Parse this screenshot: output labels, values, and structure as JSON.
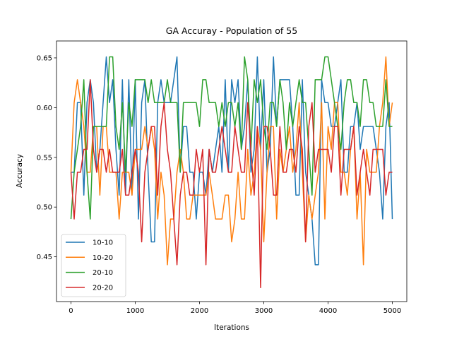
{
  "chart_data": {
    "type": "line",
    "title": "GA Accuray - Population of 55",
    "xlabel": "Iterations",
    "ylabel": "Accuracy",
    "xlim": [
      -225,
      5225
    ],
    "ylim": [
      0.405,
      0.667
    ],
    "xticks": [
      0,
      1000,
      2000,
      3000,
      4000,
      5000
    ],
    "xtick_labels": [
      "0",
      "1000",
      "2000",
      "3000",
      "4000",
      "5000"
    ],
    "yticks": [
      0.45,
      0.5,
      0.55,
      0.6,
      0.65
    ],
    "ytick_labels": [
      "0.45",
      "0.50",
      "0.55",
      "0.60",
      "0.65"
    ],
    "legend_position": "lower-left",
    "grid": false,
    "x": [
      0,
      50,
      100,
      150,
      200,
      250,
      300,
      350,
      400,
      450,
      500,
      550,
      600,
      650,
      700,
      750,
      800,
      850,
      900,
      950,
      1000,
      1050,
      1100,
      1150,
      1200,
      1250,
      1300,
      1350,
      1400,
      1450,
      1500,
      1550,
      1600,
      1650,
      1700,
      1750,
      1800,
      1850,
      1900,
      1950,
      2000,
      2050,
      2100,
      2150,
      2200,
      2250,
      2300,
      2350,
      2400,
      2450,
      2500,
      2550,
      2600,
      2650,
      2700,
      2750,
      2800,
      2850,
      2900,
      2950,
      3000,
      3050,
      3100,
      3150,
      3200,
      3250,
      3300,
      3350,
      3400,
      3450,
      3500,
      3550,
      3600,
      3650,
      3700,
      3750,
      3800,
      3850,
      3900,
      3950,
      4000,
      4050,
      4100,
      4150,
      4200,
      4250,
      4300,
      4350,
      4400,
      4450,
      4500,
      4550,
      4600,
      4650,
      4700,
      4750,
      4800,
      4850,
      4900,
      4950,
      5000
    ],
    "series": [
      {
        "name": "10-10",
        "color": "#1f77b4",
        "values": [
          0.535,
          0.535,
          0.605,
          0.605,
          0.512,
          0.605,
          0.628,
          0.605,
          0.535,
          0.558,
          0.605,
          0.651,
          0.605,
          0.628,
          0.558,
          0.512,
          0.628,
          0.512,
          0.628,
          0.512,
          0.628,
          0.488,
          0.605,
          0.628,
          0.535,
          0.465,
          0.465,
          0.605,
          0.628,
          0.605,
          0.605,
          0.605,
          0.628,
          0.651,
          0.535,
          0.581,
          0.581,
          0.535,
          0.535,
          0.488,
          0.535,
          0.535,
          0.512,
          0.558,
          0.535,
          0.558,
          0.581,
          0.535,
          0.628,
          0.535,
          0.628,
          0.605,
          0.628,
          0.558,
          0.581,
          0.628,
          0.535,
          0.558,
          0.651,
          0.558,
          0.628,
          0.535,
          0.558,
          0.651,
          0.581,
          0.628,
          0.628,
          0.628,
          0.628,
          0.581,
          0.512,
          0.512,
          0.628,
          0.535,
          0.512,
          0.488,
          0.442,
          0.442,
          0.628,
          0.605,
          0.605,
          0.581,
          0.581,
          0.605,
          0.628,
          0.535,
          0.535,
          0.581,
          0.581,
          0.605,
          0.558,
          0.581,
          0.581,
          0.581,
          0.581,
          0.558,
          0.535,
          0.488,
          0.581,
          0.605,
          0.488
        ]
      },
      {
        "name": "10-20",
        "color": "#ff7f0e",
        "values": [
          0.535,
          0.605,
          0.628,
          0.605,
          0.581,
          0.535,
          0.535,
          0.581,
          0.581,
          0.512,
          0.581,
          0.581,
          0.535,
          0.535,
          0.535,
          0.488,
          0.535,
          0.535,
          0.535,
          0.512,
          0.558,
          0.558,
          0.558,
          0.581,
          0.558,
          0.581,
          0.558,
          0.488,
          0.535,
          0.512,
          0.442,
          0.488,
          0.488,
          0.535,
          0.558,
          0.535,
          0.488,
          0.488,
          0.512,
          0.512,
          0.512,
          0.512,
          0.512,
          0.535,
          0.512,
          0.488,
          0.488,
          0.488,
          0.512,
          0.512,
          0.465,
          0.488,
          0.535,
          0.488,
          0.488,
          0.558,
          0.512,
          0.535,
          0.581,
          0.558,
          0.465,
          0.535,
          0.581,
          0.581,
          0.488,
          0.558,
          0.535,
          0.558,
          0.581,
          0.535,
          0.558,
          0.605,
          0.535,
          0.465,
          0.512,
          0.488,
          0.512,
          0.535,
          0.605,
          0.488,
          0.581,
          0.558,
          0.605,
          0.605,
          0.535,
          0.535,
          0.512,
          0.558,
          0.581,
          0.488,
          0.535,
          0.442,
          0.558,
          0.535,
          0.535,
          0.535,
          0.581,
          0.605,
          0.651,
          0.581,
          0.605
        ]
      },
      {
        "name": "20-10",
        "color": "#2ca02c",
        "values": [
          0.488,
          0.535,
          0.558,
          0.581,
          0.628,
          0.535,
          0.488,
          0.581,
          0.581,
          0.581,
          0.581,
          0.581,
          0.651,
          0.651,
          0.581,
          0.558,
          0.605,
          0.535,
          0.605,
          0.581,
          0.628,
          0.628,
          0.628,
          0.628,
          0.605,
          0.628,
          0.605,
          0.605,
          0.605,
          0.605,
          0.628,
          0.605,
          0.605,
          0.605,
          0.535,
          0.605,
          0.605,
          0.605,
          0.605,
          0.605,
          0.581,
          0.628,
          0.628,
          0.605,
          0.605,
          0.605,
          0.581,
          0.605,
          0.581,
          0.605,
          0.605,
          0.581,
          0.605,
          0.558,
          0.651,
          0.628,
          0.558,
          0.628,
          0.605,
          0.628,
          0.581,
          0.558,
          0.605,
          0.605,
          0.581,
          0.628,
          0.605,
          0.558,
          0.605,
          0.581,
          0.605,
          0.628,
          0.605,
          0.605,
          0.558,
          0.512,
          0.628,
          0.628,
          0.628,
          0.651,
          0.651,
          0.628,
          0.605,
          0.581,
          0.558,
          0.605,
          0.628,
          0.628,
          0.605,
          0.605,
          0.581,
          0.628,
          0.628,
          0.605,
          0.605,
          0.581,
          0.581,
          0.581,
          0.628,
          0.581,
          0.581
        ]
      },
      {
        "name": "20-20",
        "color": "#d62728",
        "values": [
          0.535,
          0.488,
          0.535,
          0.535,
          0.558,
          0.558,
          0.628,
          0.558,
          0.535,
          0.558,
          0.558,
          0.535,
          0.558,
          0.535,
          0.535,
          0.535,
          0.558,
          0.512,
          0.512,
          0.535,
          0.558,
          0.535,
          0.465,
          0.535,
          0.558,
          0.581,
          0.581,
          0.512,
          0.581,
          0.605,
          0.558,
          0.535,
          0.488,
          0.442,
          0.512,
          0.535,
          0.535,
          0.512,
          0.512,
          0.558,
          0.535,
          0.558,
          0.442,
          0.558,
          0.535,
          0.535,
          0.558,
          0.581,
          0.558,
          0.535,
          0.535,
          0.581,
          0.558,
          0.535,
          0.535,
          0.605,
          0.558,
          0.512,
          0.581,
          0.419,
          0.581,
          0.581,
          0.558,
          0.512,
          0.512,
          0.581,
          0.535,
          0.535,
          0.558,
          0.558,
          0.535,
          0.581,
          0.558,
          0.465,
          0.581,
          0.605,
          0.535,
          0.558,
          0.558,
          0.558,
          0.558,
          0.535,
          0.581,
          0.581,
          0.512,
          0.558,
          0.558,
          0.558,
          0.581,
          0.512,
          0.535,
          0.558,
          0.535,
          0.512,
          0.558,
          0.558,
          0.558,
          0.558,
          0.512,
          0.535,
          0.535
        ]
      }
    ]
  }
}
